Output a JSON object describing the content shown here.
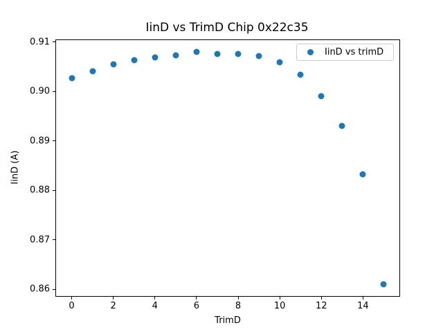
{
  "chart_data": {
    "type": "scatter",
    "title": "IinD vs TrimD Chip 0x22c35",
    "xlabel": "TrimD",
    "ylabel": "IinD (A)",
    "legend": {
      "labels": [
        "IinD vs trimD"
      ],
      "position": "upper right"
    },
    "series": [
      {
        "name": "IinD vs trimD",
        "color": "#1f77b4",
        "marker": "circle",
        "marker_size_px": 9,
        "x": [
          0,
          1,
          2,
          3,
          4,
          5,
          6,
          7,
          8,
          9,
          10,
          11,
          12,
          13,
          14,
          15
        ],
        "y": [
          0.9027,
          0.9041,
          0.9055,
          0.9064,
          0.9069,
          0.9073,
          0.908,
          0.9076,
          0.9076,
          0.9072,
          0.9059,
          0.9034,
          0.8991,
          0.8931,
          0.8832,
          0.861
        ]
      }
    ],
    "xlim": [
      -0.75,
      15.75
    ],
    "ylim": [
      0.8586,
      0.9104
    ],
    "xticks": [
      0,
      2,
      4,
      6,
      8,
      10,
      12,
      14
    ],
    "xtick_labels": [
      "0",
      "2",
      "4",
      "6",
      "8",
      "10",
      "12",
      "14"
    ],
    "yticks": [
      0.86,
      0.87,
      0.88,
      0.89,
      0.9,
      0.91
    ],
    "ytick_labels": [
      "0.86",
      "0.87",
      "0.88",
      "0.89",
      "0.90",
      "0.91"
    ],
    "grid": false,
    "background_color": "#ffffff",
    "spine_color": "#000000"
  }
}
